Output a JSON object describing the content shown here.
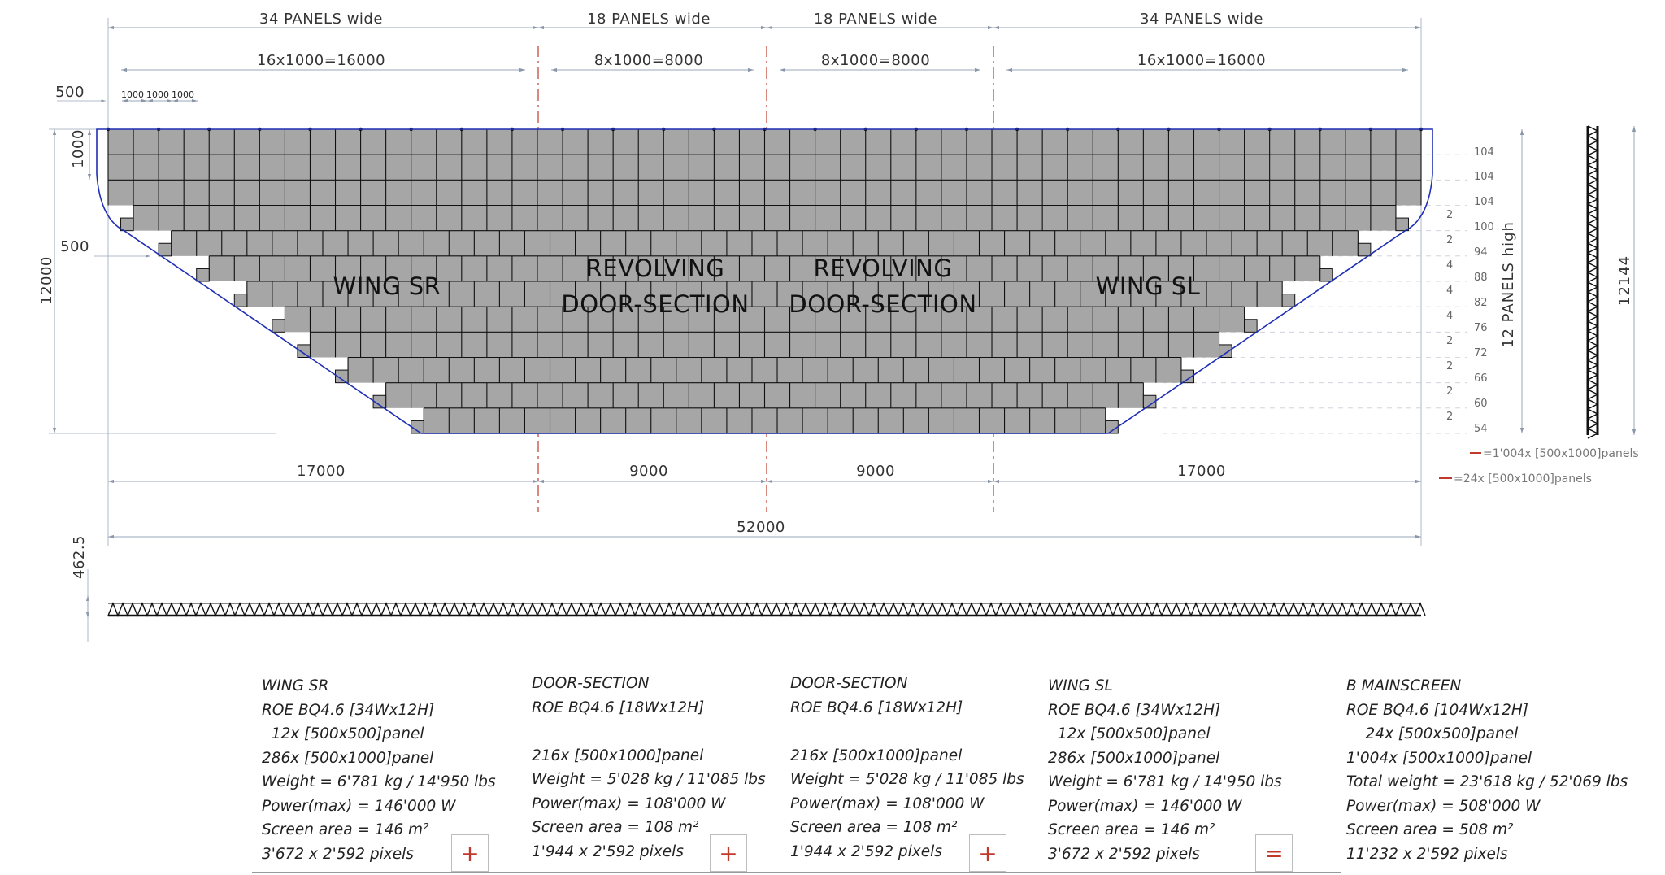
{
  "top_dims": {
    "panels_wide": [
      "34 PANELS wide",
      "18 PANELS wide",
      "18 PANELS wide",
      "34 PANELS wide"
    ],
    "sub_widths": [
      "16x1000=16000",
      "8x1000=8000",
      "8x1000=8000",
      "16x1000=16000"
    ],
    "unit_labels": [
      "1000",
      "1000",
      "1000"
    ],
    "edge_offset": "500"
  },
  "left_dims": {
    "top_row": "1000",
    "step_offset": "500",
    "total_height": "12000"
  },
  "sections": {
    "wing_sr": "WING SR",
    "door_line1": "REVOLVING",
    "door_line2": "DOOR-SECTION",
    "wing_sl": "WING SL"
  },
  "row_labels": {
    "panel_counts": [
      "104",
      "104",
      "104",
      "100",
      "94",
      "88",
      "82",
      "76",
      "72",
      "66",
      "60",
      "54"
    ],
    "step_values": [
      "2",
      "2",
      "4",
      "4",
      "4",
      "2",
      "2",
      "2",
      "2"
    ]
  },
  "right_side": {
    "panels_high": "12 PANELS high",
    "truss_height": "12144"
  },
  "legend": {
    "full_panels": "=1'004x [500x1000]panels",
    "half_panels": "=24x [500x1000]panels"
  },
  "bottom_dims": {
    "segments": [
      "17000",
      "9000",
      "9000",
      "17000"
    ],
    "total": "52000",
    "floor_gap": "462.5"
  },
  "specs": [
    {
      "lines": [
        "WING SR",
        "ROE BQ4.6 [34Wx12H]",
        "  12x [500x500]panel",
        "286x [500x1000]panel",
        "Weight = 6'781 kg / 14'950 lbs",
        "Power(max) = 146'000 W",
        "Screen area = 146 m²",
        "3'672 x 2'592 pixels"
      ]
    },
    {
      "lines": [
        "DOOR-SECTION",
        "ROE BQ4.6 [18Wx12H]",
        "",
        "216x [500x1000]panel",
        "Weight = 5'028 kg / 11'085 lbs",
        "Power(max) = 108'000 W",
        "Screen area = 108 m²",
        "1'944 x 2'592 pixels"
      ]
    },
    {
      "lines": [
        "DOOR-SECTION",
        "ROE BQ4.6 [18Wx12H]",
        "",
        "216x [500x1000]panel",
        "Weight = 5'028 kg / 11'085 lbs",
        "Power(max) = 108'000 W",
        "Screen area = 108 m²",
        "1'944 x 2'592 pixels"
      ]
    },
    {
      "lines": [
        "WING SL",
        "ROE BQ4.6 [34Wx12H]",
        "  12x [500x500]panel",
        "286x [500x1000]panel",
        "Weight = 6'781 kg / 14'950 lbs",
        "Power(max) = 146'000 W",
        "Screen area = 146 m²",
        "3'672 x 2'592 pixels"
      ]
    },
    {
      "lines": [
        "B MAINSCREEN",
        "ROE BQ4.6 [104Wx12H]",
        "    24x [500x500]panel",
        "1'004x [500x1000]panel",
        "Total weight = 23'618 kg / 52'069 lbs",
        "Power(max) = 508'000 W",
        "Screen area = 508 m²",
        "11'232 x 2'592 pixels"
      ]
    }
  ],
  "operators": [
    "+",
    "+",
    "+",
    "="
  ],
  "colors": {
    "panel_fill": "#a6a6a6",
    "grid_line": "#111111",
    "outline": "#1f2fb5",
    "section_divider": "#c0392b",
    "dimension": "#9aa7b8"
  }
}
